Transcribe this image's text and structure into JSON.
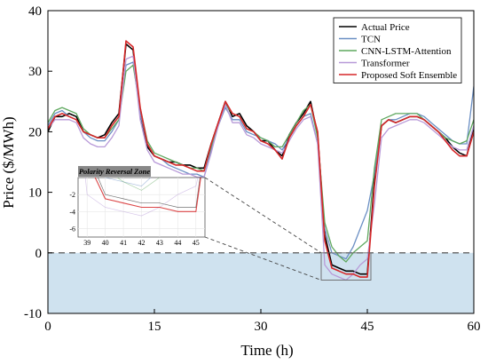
{
  "chart_data": {
    "type": "line",
    "title": "",
    "xlabel": "Time (h)",
    "ylabel": "Price ($/MWh)",
    "xlim": [
      0,
      60
    ],
    "ylim": [
      -10,
      40
    ],
    "x_ticks": [
      0,
      15,
      30,
      45,
      60
    ],
    "y_ticks": [
      -10,
      0,
      10,
      20,
      30,
      40
    ],
    "grid": false,
    "legend_position": "top-right",
    "zero_line": {
      "y": 0,
      "style": "dashed",
      "negative_region_color": "#cfe2ef"
    },
    "x": [
      0,
      1,
      2,
      3,
      4,
      5,
      6,
      7,
      8,
      9,
      10,
      11,
      12,
      13,
      14,
      15,
      16,
      17,
      18,
      19,
      20,
      21,
      22,
      23,
      24,
      25,
      26,
      27,
      28,
      29,
      30,
      31,
      32,
      33,
      34,
      35,
      36,
      37,
      38,
      39,
      40,
      41,
      42,
      43,
      44,
      45,
      46,
      47,
      48,
      49,
      50,
      51,
      52,
      53,
      54,
      55,
      56,
      57,
      58,
      59,
      60
    ],
    "series": [
      {
        "name": "Actual Price",
        "color": "#000000",
        "values": [
          20,
          22.5,
          22.5,
          23,
          22.5,
          20,
          19.5,
          19,
          19.5,
          21.5,
          23,
          34.5,
          33.5,
          23,
          17.5,
          16,
          15.5,
          15,
          15,
          14.5,
          14.5,
          14,
          14,
          18,
          21.5,
          25,
          22.5,
          23,
          21,
          20,
          18.5,
          18.5,
          17,
          16,
          19.5,
          21.5,
          23,
          25,
          19.5,
          3,
          -2,
          -2.5,
          -3,
          -3,
          -3.5,
          -3.5,
          12,
          21,
          22,
          21.5,
          22,
          22.5,
          22.5,
          22,
          21,
          20,
          19,
          17.5,
          16.5,
          16,
          20.5
        ]
      },
      {
        "name": "TCN",
        "color": "#6b8fc4",
        "values": [
          21,
          23,
          23.5,
          22.5,
          22,
          20,
          19,
          18.5,
          18.5,
          20,
          22,
          31,
          31.5,
          23,
          18,
          16,
          15.5,
          14.5,
          14,
          13.5,
          13,
          13,
          12.5,
          17,
          21,
          24,
          22,
          22,
          20,
          19.5,
          19,
          18.5,
          18,
          17,
          19,
          21,
          22.5,
          23,
          18,
          4,
          0,
          -0.5,
          -1,
          1,
          4,
          7,
          13,
          21,
          22,
          22,
          22.5,
          23,
          23,
          22.5,
          21.5,
          20.5,
          19.5,
          18.5,
          18,
          18,
          27.5
        ]
      },
      {
        "name": "CNN-LSTM-Attention",
        "color": "#5fa85f",
        "values": [
          21.5,
          23.5,
          24,
          23.5,
          23,
          20.5,
          19.5,
          19,
          19,
          20.5,
          22,
          30,
          31,
          24,
          18.5,
          16.5,
          16,
          15.5,
          15,
          14.5,
          14,
          14,
          13.5,
          17.5,
          21.5,
          24.5,
          23,
          22.5,
          20.5,
          20,
          19,
          18.5,
          17.5,
          17.5,
          19.5,
          21.5,
          23.5,
          24.5,
          19,
          5,
          1,
          -0.5,
          -1.5,
          0,
          1,
          2,
          14,
          22,
          22.5,
          23,
          23,
          23,
          23,
          22,
          21,
          20,
          19,
          18.5,
          18,
          18.5,
          22
        ]
      },
      {
        "name": "Transformer",
        "color": "#b89ad8",
        "values": [
          20.5,
          22,
          22,
          22,
          21.5,
          19,
          18,
          17.5,
          17.5,
          19,
          21,
          32,
          32.5,
          22,
          17,
          15,
          14.5,
          14,
          13.5,
          13,
          13,
          12.5,
          12.5,
          16.5,
          21,
          24.5,
          21.5,
          21.5,
          19.5,
          19,
          18,
          17.5,
          17,
          16.5,
          18.5,
          20.5,
          22,
          22.5,
          18,
          -2,
          -3.5,
          -4,
          -4.5,
          -3.5,
          -2,
          -1,
          8,
          19,
          20.5,
          21,
          21.5,
          22,
          22,
          21.5,
          20.5,
          19.5,
          18.5,
          17.5,
          17,
          17,
          21
        ]
      },
      {
        "name": "Proposed Soft Ensemble",
        "color": "#d62728",
        "values": [
          20.5,
          22.5,
          23,
          22.5,
          22,
          20,
          19.5,
          19,
          19,
          21,
          22.5,
          35,
          34,
          24,
          18,
          16,
          15.5,
          15,
          14.5,
          14.5,
          14,
          13.5,
          13.5,
          18,
          21.5,
          25,
          23,
          22.5,
          20.5,
          20,
          18.5,
          18,
          17,
          15.5,
          19,
          21,
          22.5,
          24.5,
          20,
          2,
          -2.5,
          -3,
          -3.5,
          -3.5,
          -4,
          -4,
          11,
          21,
          22,
          21.5,
          22,
          22.5,
          22.5,
          22,
          21,
          20,
          18.5,
          17,
          16,
          16,
          20
        ]
      }
    ],
    "inset": {
      "title": "Polarity Reversal Zone",
      "xlim": [
        38.5,
        45.5
      ],
      "ylim": [
        -7,
        0
      ],
      "x_ticks": [
        39,
        40,
        41,
        42,
        43,
        44,
        45
      ],
      "y_ticks": [
        -2,
        -4,
        -6
      ],
      "source_box": {
        "x": [
          38.5,
          45.5
        ],
        "y": [
          -4.5,
          0
        ]
      }
    }
  }
}
